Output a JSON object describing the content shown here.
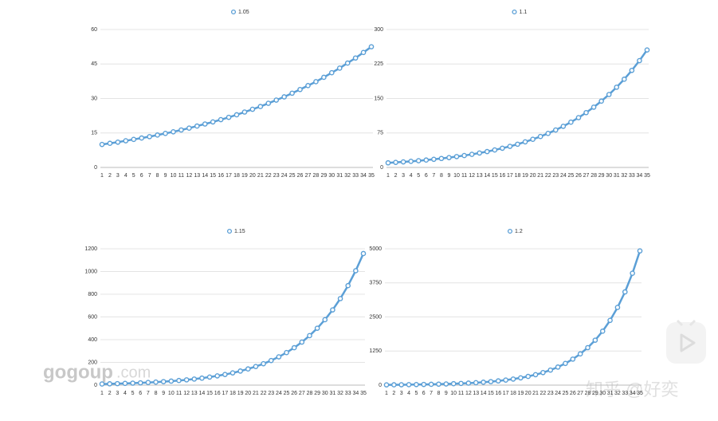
{
  "chart_data": [
    {
      "type": "line",
      "x": [
        1,
        2,
        3,
        4,
        5,
        6,
        7,
        8,
        9,
        10,
        11,
        12,
        13,
        14,
        15,
        16,
        17,
        18,
        19,
        20,
        21,
        22,
        23,
        24,
        25,
        26,
        27,
        28,
        29,
        30,
        31,
        32,
        33,
        34,
        35
      ],
      "xlim": [
        1,
        35
      ],
      "series": [
        {
          "name": "1.05",
          "color": "#5b9fd6",
          "values": [
            10,
            10.5,
            11.0,
            11.6,
            12.2,
            12.8,
            13.4,
            14.1,
            14.8,
            15.5,
            16.3,
            17.1,
            18.0,
            18.9,
            19.8,
            20.8,
            21.8,
            22.9,
            24.1,
            25.3,
            26.5,
            27.9,
            29.3,
            30.7,
            32.3,
            33.9,
            35.6,
            37.3,
            39.2,
            41.2,
            43.2,
            45.4,
            47.6,
            50.0,
            52.5
          ]
        }
      ],
      "ylim": [
        0,
        60
      ],
      "yticks": [
        0,
        15,
        30,
        45,
        60
      ],
      "grid": true,
      "legend": "top"
    },
    {
      "type": "line",
      "x": [
        1,
        2,
        3,
        4,
        5,
        6,
        7,
        8,
        9,
        10,
        11,
        12,
        13,
        14,
        15,
        16,
        17,
        18,
        19,
        20,
        21,
        22,
        23,
        24,
        25,
        26,
        27,
        28,
        29,
        30,
        31,
        32,
        33,
        34,
        35
      ],
      "xlim": [
        1,
        35
      ],
      "series": [
        {
          "name": "1.1",
          "color": "#5b9fd6",
          "values": [
            10,
            11,
            12.1,
            13.3,
            14.6,
            16.1,
            17.7,
            19.5,
            21.4,
            23.6,
            25.9,
            28.5,
            31.4,
            34.5,
            38.0,
            41.8,
            45.9,
            50.5,
            55.6,
            61.2,
            67.3,
            74.0,
            81.4,
            89.5,
            98.5,
            108.3,
            119.2,
            131.1,
            144.2,
            158.6,
            174.5,
            191.9,
            211.1,
            232.3,
            255.5
          ]
        }
      ],
      "ylim": [
        0,
        300
      ],
      "yticks": [
        0,
        75,
        150,
        225,
        300
      ],
      "grid": true,
      "legend": "top"
    },
    {
      "type": "line",
      "x": [
        1,
        2,
        3,
        4,
        5,
        6,
        7,
        8,
        9,
        10,
        11,
        12,
        13,
        14,
        15,
        16,
        17,
        18,
        19,
        20,
        21,
        22,
        23,
        24,
        25,
        26,
        27,
        28,
        29,
        30,
        31,
        32,
        33,
        34,
        35
      ],
      "xlim": [
        1,
        35
      ],
      "series": [
        {
          "name": "1.15",
          "color": "#5b9fd6",
          "values": [
            10,
            11.5,
            13.2,
            15.2,
            17.5,
            20.1,
            23.1,
            26.6,
            30.6,
            35.2,
            40.5,
            46.5,
            53.5,
            61.5,
            70.8,
            81.4,
            93.6,
            107.6,
            123.8,
            142.3,
            163.7,
            188.2,
            216.4,
            248.9,
            286.3,
            329.2,
            378.6,
            435.4,
            500.7,
            575.8,
            662.1,
            761.4,
            875.7,
            1007.0,
            1158.1
          ]
        }
      ],
      "ylim": [
        0,
        1200
      ],
      "yticks": [
        0,
        200,
        400,
        600,
        800,
        1000,
        1200
      ],
      "grid": true,
      "legend": "top"
    },
    {
      "type": "line",
      "x": [
        1,
        2,
        3,
        4,
        5,
        6,
        7,
        8,
        9,
        10,
        11,
        12,
        13,
        14,
        15,
        16,
        17,
        18,
        19,
        20,
        21,
        22,
        23,
        24,
        25,
        26,
        27,
        28,
        29,
        30,
        31,
        32,
        33,
        34,
        35
      ],
      "xlim": [
        1,
        35
      ],
      "series": [
        {
          "name": "1.2",
          "color": "#5b9fd6",
          "values": [
            10,
            12,
            14,
            17,
            21,
            25,
            30,
            36,
            43,
            52,
            62,
            74,
            89,
            107,
            128,
            154,
            185,
            222,
            266,
            319,
            383,
            460,
            552,
            662,
            795,
            954,
            1145,
            1374,
            1648,
            1978,
            2374,
            2849,
            3418,
            4102,
            4922
          ]
        }
      ],
      "ylim": [
        0,
        5000
      ],
      "yticks": [
        0,
        1250,
        2500,
        3750,
        5000
      ],
      "grid": true,
      "legend": "top"
    }
  ],
  "watermarks": [
    "gogoup",
    ".com",
    "知乎 @好奕"
  ]
}
